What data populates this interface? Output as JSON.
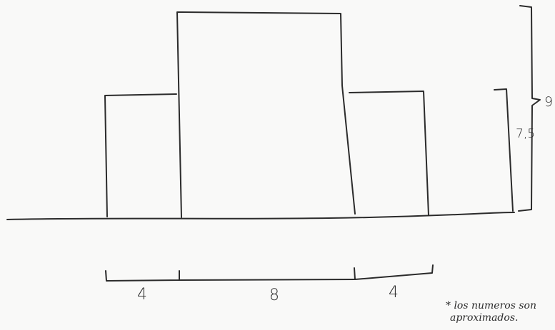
{
  "diagram": {
    "shape": "three adjacent rectangles standing on a baseline",
    "blocks": [
      {
        "name": "left-block",
        "width": "4",
        "height": "7,5"
      },
      {
        "name": "center-block",
        "width": "8",
        "height": "9"
      },
      {
        "name": "right-block",
        "width": "4",
        "height": "7,5"
      }
    ],
    "labels": {
      "left_width": "4",
      "center_width": "8",
      "right_width": "4",
      "tall_height": "9",
      "short_height": "7,5"
    },
    "note": {
      "line1": "* los numeros son",
      "line2": "aproximados."
    }
  }
}
